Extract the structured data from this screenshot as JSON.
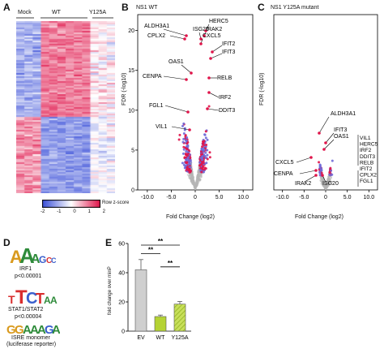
{
  "panels": {
    "A": "A",
    "B": "B",
    "C": "C",
    "D": "D",
    "E": "E"
  },
  "heatmap": {
    "groups": [
      "Mock",
      "WT",
      "Y125A"
    ],
    "legend_label": "Row z-score",
    "legend_ticks": [
      "-2",
      "-1",
      "0",
      "1",
      "2"
    ],
    "colors": {
      "low": "#3a4fd8",
      "mid": "#ffffff",
      "high": "#e0144a"
    }
  },
  "volcano_wt": {
    "title": "NS1 WT",
    "xlabel": "Fold Change (log2)",
    "ylabel": "FDR (-log10)",
    "x_ticks": [
      "-10.0",
      "-5.0",
      "0",
      "5.0",
      "10.0"
    ],
    "y_ticks": [
      "0",
      "5",
      "10",
      "15",
      "20"
    ],
    "genes": [
      "ALDH3A1",
      "HERC5",
      "CPLX2",
      "ISG20",
      "IRAK2",
      "CXCL5",
      "IFIT2",
      "IFIT3",
      "OAS1",
      "CENPA",
      "RELB",
      "IRF2",
      "FGL1",
      "DDIT3",
      "VIL1"
    ]
  },
  "volcano_y125a": {
    "title": "NS1 Y125A mutant",
    "xlabel": "Fold Change (log2)",
    "ylabel": "FDR (-log10)",
    "x_ticks": [
      "-10.0",
      "-5.0",
      "0",
      "5.0",
      "10.0"
    ],
    "left_genes": [
      "ALDH3A1",
      "IFIT3",
      "OAS1",
      "CXCL5",
      "CENPA",
      "IRAK2",
      "ISG20"
    ],
    "right_list": [
      "VIL1",
      "HERC5",
      "IRF2",
      "DDIT3",
      "RELB",
      "IFIT2",
      "CPLX2",
      "FGL1"
    ]
  },
  "motifs": [
    {
      "name": "IRF1",
      "pvalue": "p<0.00001"
    },
    {
      "name": "STAT1/STAT2",
      "pvalue": "p<0.00004"
    },
    {
      "name": "ISRE monomer",
      "pvalue": "(luciferase reporter)"
    }
  ],
  "chart_data": {
    "type": "bar",
    "categories": [
      "EV",
      "WT",
      "Y125A"
    ],
    "values": [
      42,
      10,
      18.5
    ],
    "errors": [
      7,
      1,
      1.8
    ],
    "ylabel": "fold change over minP",
    "ylim": [
      0,
      60
    ],
    "y_ticks": [
      "0",
      "20",
      "40",
      "60"
    ],
    "significance": [
      {
        "pair": [
          "EV",
          "WT"
        ],
        "label": "**"
      },
      {
        "pair": [
          "EV",
          "Y125A"
        ],
        "label": "**"
      },
      {
        "pair": [
          "WT",
          "Y125A"
        ],
        "label": "**"
      }
    ],
    "colors": {
      "EV": "#cfcfcf",
      "WT": "#b5d334",
      "Y125A": "#c8e05a"
    }
  }
}
